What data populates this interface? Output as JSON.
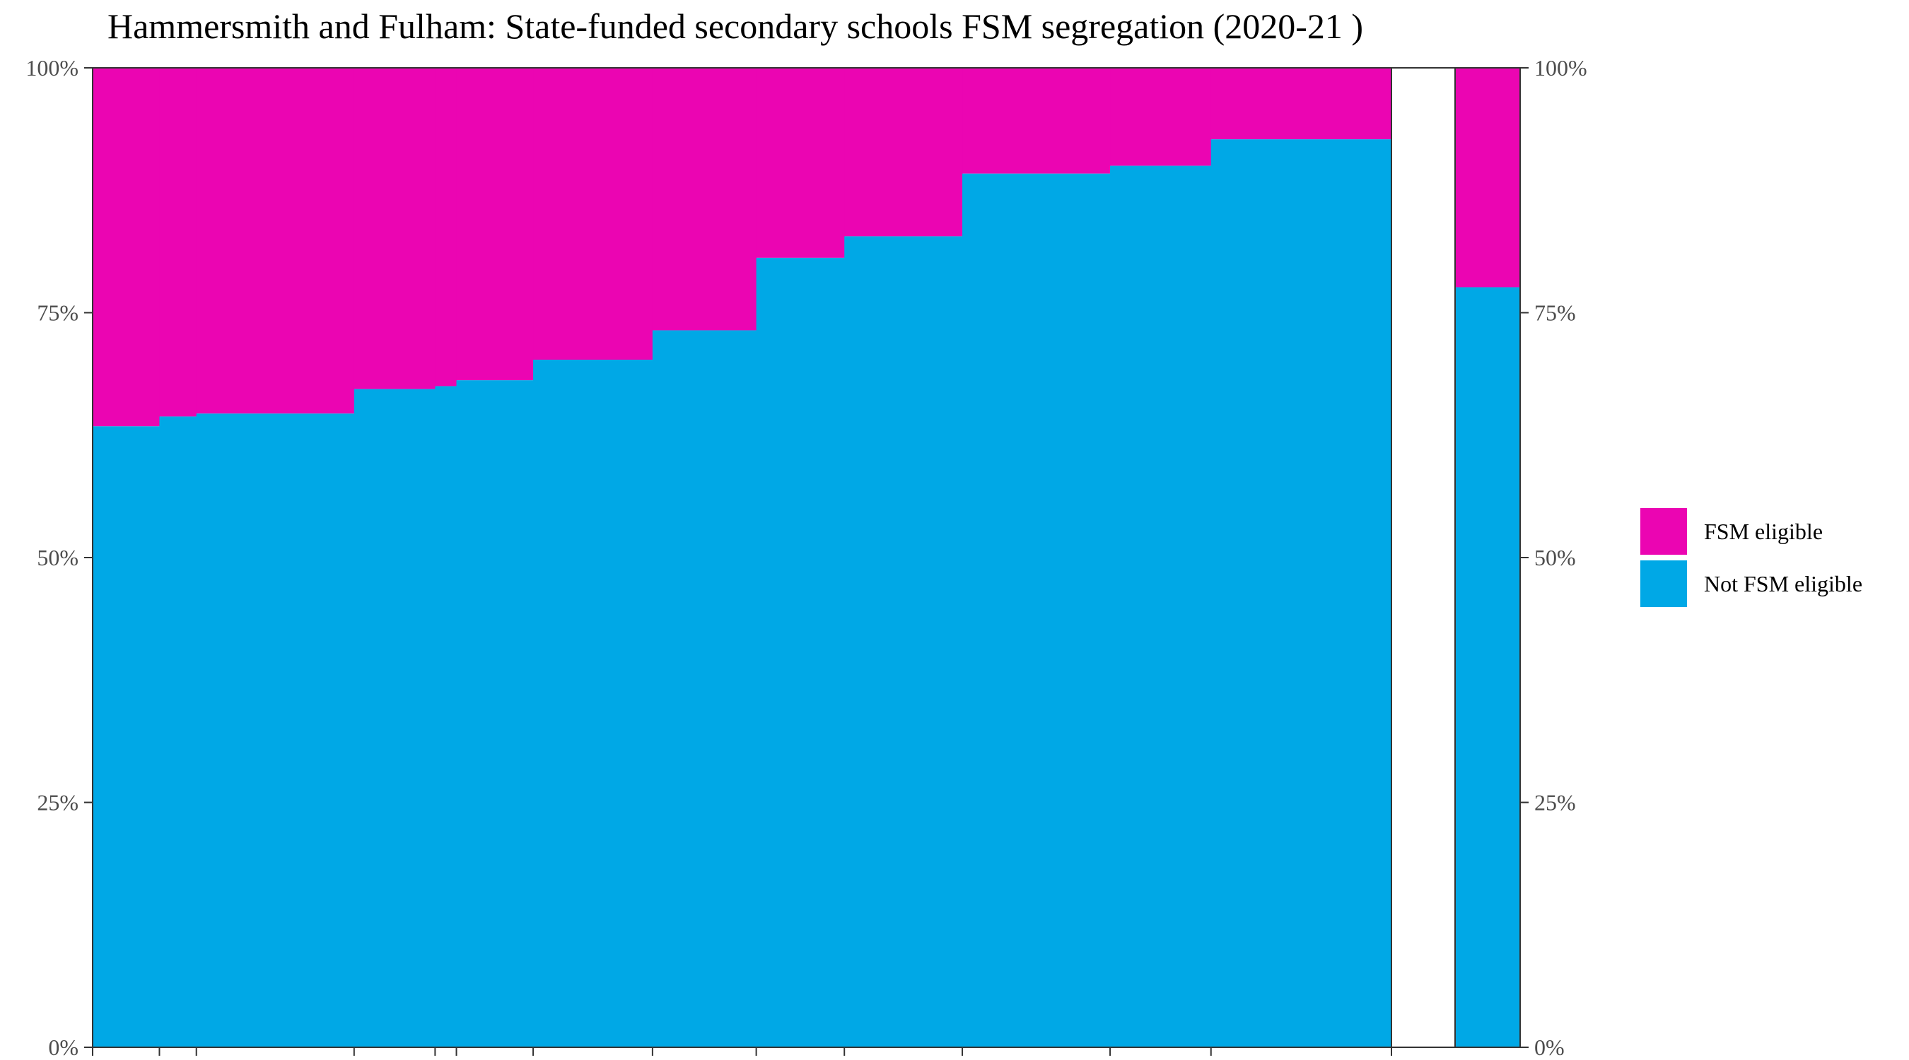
{
  "chart_data": {
    "type": "bar",
    "subtype": "variable-width stacked 100% bar (mosaic)",
    "title": "Hammersmith and Fulham: State-funded secondary schools FSM segregation (2020-21 )",
    "xlabel": "",
    "ylabel": "",
    "ylim": [
      0,
      100
    ],
    "y_ticks": [
      "0%",
      "25%",
      "50%",
      "75%",
      "100%"
    ],
    "grid": false,
    "legend_position": "right",
    "colors": {
      "fsm": "#eb05b2",
      "not_fsm": "#00a8e6",
      "axis": "#333333"
    },
    "series": [
      {
        "name": "FSM eligible",
        "key": "fsm"
      },
      {
        "name": "Not FSM eligible",
        "key": "not_fsm"
      }
    ],
    "schools": [
      {
        "share_of_pupils": 4.7,
        "not_fsm_pct": 63.4
      },
      {
        "share_of_pupils": 2.6,
        "not_fsm_pct": 64.4
      },
      {
        "share_of_pupils": 11.1,
        "not_fsm_pct": 64.7
      },
      {
        "share_of_pupils": 5.7,
        "not_fsm_pct": 67.2
      },
      {
        "share_of_pupils": 1.5,
        "not_fsm_pct": 67.5
      },
      {
        "share_of_pupils": 5.4,
        "not_fsm_pct": 68.1
      },
      {
        "share_of_pupils": 8.4,
        "not_fsm_pct": 70.2
      },
      {
        "share_of_pupils": 7.3,
        "not_fsm_pct": 73.2
      },
      {
        "share_of_pupils": 6.2,
        "not_fsm_pct": 80.6
      },
      {
        "share_of_pupils": 8.3,
        "not_fsm_pct": 82.8
      },
      {
        "share_of_pupils": 10.4,
        "not_fsm_pct": 89.2
      },
      {
        "share_of_pupils": 7.1,
        "not_fsm_pct": 90.0
      },
      {
        "share_of_pupils": 12.7,
        "not_fsm_pct": 92.7
      }
    ],
    "overall": {
      "share_of_pupils": 4.5,
      "not_fsm_pct": 77.6
    }
  }
}
